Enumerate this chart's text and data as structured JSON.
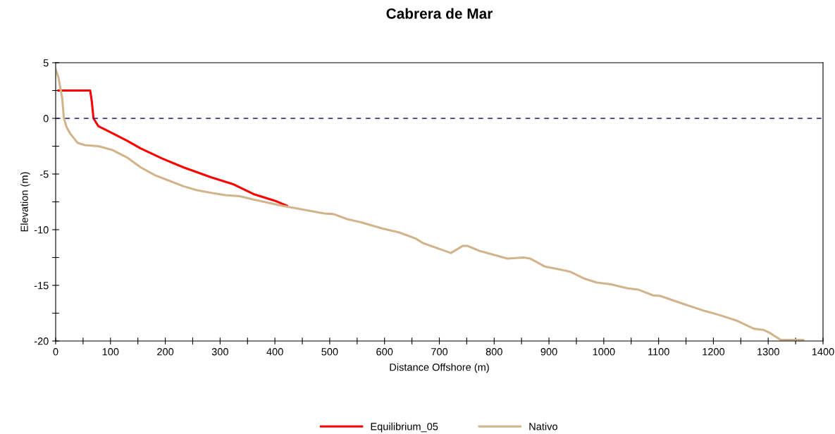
{
  "chart_data": {
    "type": "line",
    "title": "Cabrera de Mar",
    "xlabel": "Distance Offshore (m)",
    "ylabel": "Elevation (m)",
    "xlim": [
      0,
      1400
    ],
    "ylim": [
      -20,
      5
    ],
    "xticks": [
      0,
      {
        "value": 50,
        "label": null
      },
      100,
      {
        "value": 150,
        "label": null
      },
      200,
      {
        "value": 250,
        "label": null
      },
      300,
      {
        "value": 350,
        "label": null
      },
      400,
      {
        "value": 450,
        "label": null
      },
      500,
      {
        "value": 550,
        "label": null
      },
      600,
      {
        "value": 650,
        "label": null
      },
      700,
      {
        "value": 750,
        "label": null
      },
      800,
      {
        "value": 850,
        "label": null
      },
      900,
      {
        "value": 950,
        "label": null
      },
      1000,
      {
        "value": 1050,
        "label": null
      },
      1100,
      {
        "value": 1150,
        "label": null
      },
      1200,
      {
        "value": 1250,
        "label": null
      },
      1300,
      {
        "value": 1350,
        "label": null
      },
      1400
    ],
    "yticks": [
      -20,
      {
        "value": -17.5,
        "label": null
      },
      -15,
      {
        "value": -12.5,
        "label": null
      },
      -10,
      {
        "value": -7.5,
        "label": null
      },
      -5,
      {
        "value": -2.5,
        "label": null
      },
      0,
      {
        "value": 2.5,
        "label": null
      },
      5
    ],
    "grid": false,
    "legend": "bottom",
    "ref_lines": [
      {
        "axis": "y",
        "value": 0,
        "color": "#1a1a80",
        "line_style": "dashed"
      }
    ],
    "series": [
      {
        "name": "Equilibrium_05",
        "color": "#ff0000",
        "x": [
          5,
          63,
          66,
          69,
          78,
          98,
          130,
          155,
          194,
          233,
          284,
          323,
          361,
          400,
          422
        ],
        "values": [
          2.5,
          2.5,
          1.5,
          0,
          -0.7,
          -1.2,
          -2.0,
          -2.7,
          -3.6,
          -4.4,
          -5.3,
          -5.9,
          -6.8,
          -7.4,
          -7.85
        ]
      },
      {
        "name": "Nativo",
        "color": "#d2b48c",
        "x": [
          0,
          5,
          12,
          15,
          20,
          27,
          40,
          53,
          78,
          104,
          130,
          155,
          181,
          207,
          233,
          258,
          284,
          310,
          336,
          361,
          413,
          490,
          507,
          532,
          558,
          597,
          627,
          657,
          670,
          721,
          743,
          751,
          773,
          824,
          854,
          866,
          892,
          923,
          940,
          965,
          987,
          1013,
          1042,
          1064,
          1090,
          1103,
          1141,
          1184,
          1210,
          1244,
          1274,
          1291,
          1302,
          1323,
          1364
        ],
        "values": [
          4.4,
          3.7,
          1.8,
          0,
          -0.8,
          -1.4,
          -2.2,
          -2.4,
          -2.5,
          -2.85,
          -3.5,
          -4.4,
          -5.1,
          -5.6,
          -6.1,
          -6.45,
          -6.7,
          -6.9,
          -7.0,
          -7.3,
          -7.85,
          -8.55,
          -8.6,
          -9.05,
          -9.35,
          -9.9,
          -10.25,
          -10.8,
          -11.2,
          -12.1,
          -11.45,
          -11.45,
          -11.9,
          -12.6,
          -12.5,
          -12.6,
          -13.3,
          -13.6,
          -13.8,
          -14.4,
          -14.75,
          -14.9,
          -15.25,
          -15.4,
          -15.9,
          -15.95,
          -16.6,
          -17.3,
          -17.65,
          -18.2,
          -18.9,
          -19.0,
          -19.25,
          -19.9,
          -19.9
        ]
      }
    ]
  }
}
